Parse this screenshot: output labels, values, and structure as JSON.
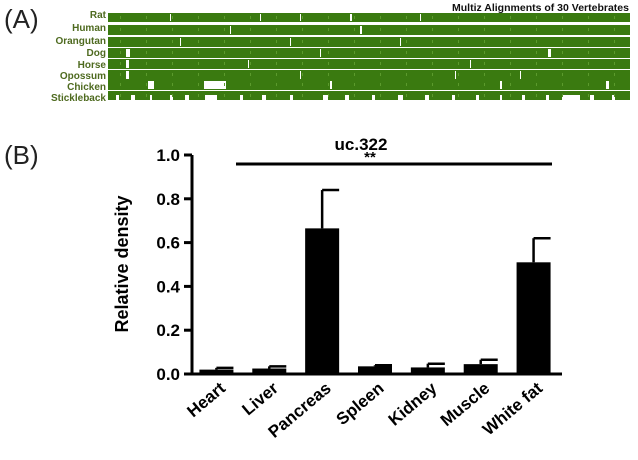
{
  "panelA": {
    "label": "(A)",
    "title": "Multiz Alignments of 30 Vertebrates",
    "species": [
      "Rat",
      "Human",
      "Orangutan",
      "Dog",
      "Horse",
      "Opossum",
      "Chicken",
      "Stickleback"
    ],
    "track_color": "#3a7a10"
  },
  "panelB": {
    "label": "(B)",
    "significance": "**"
  },
  "chart_data": {
    "type": "bar",
    "title": "uc.322",
    "xlabel": "",
    "ylabel": "Relative density",
    "ylim": [
      0,
      1.0
    ],
    "yticks": [
      "0.0",
      "0.2",
      "0.4",
      "0.6",
      "0.8",
      "1.0"
    ],
    "categories": [
      "Heart",
      "Liver",
      "Pancreas",
      "Spleen",
      "Kidney",
      "Muscle",
      "White fat"
    ],
    "values": [
      0.02,
      0.025,
      0.665,
      0.035,
      0.03,
      0.045,
      0.51
    ],
    "errors": [
      0.008,
      0.01,
      0.175,
      0.005,
      0.017,
      0.02,
      0.11
    ],
    "bar_color": "#000000",
    "grid": false
  }
}
